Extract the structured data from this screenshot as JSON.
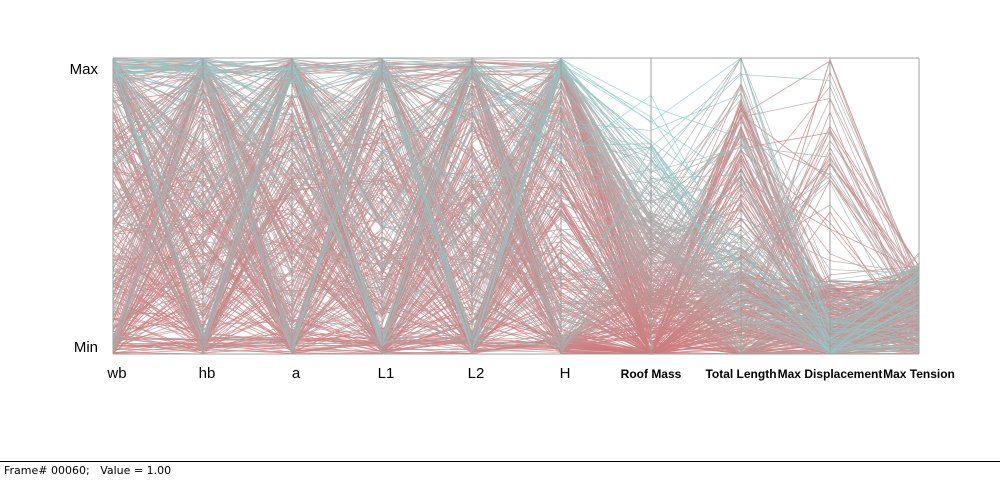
{
  "chart_data": {
    "type": "parallel-coordinates",
    "axes": [
      {
        "name": "wb",
        "kind": "input"
      },
      {
        "name": "hb",
        "kind": "input"
      },
      {
        "name": "a",
        "kind": "input"
      },
      {
        "name": "L1",
        "kind": "input"
      },
      {
        "name": "L2",
        "kind": "input"
      },
      {
        "name": "H",
        "kind": "input"
      },
      {
        "name": "Roof Mass",
        "kind": "output"
      },
      {
        "name": "Total Length",
        "kind": "output"
      },
      {
        "name": "Max Displacement",
        "kind": "output"
      },
      {
        "name": "Max Tension",
        "kind": "output"
      }
    ],
    "range_labels": {
      "max": "Max",
      "min": "Min"
    },
    "ylim": [
      0,
      1
    ],
    "color_low": "#cd7d7d",
    "color_mid": "#b0b0b0",
    "color_high": "#6fe3e3",
    "line_count": 420,
    "grid": false
  },
  "status": {
    "frame_label": "Frame# 00060;",
    "value_label": "Value = 1.00"
  }
}
